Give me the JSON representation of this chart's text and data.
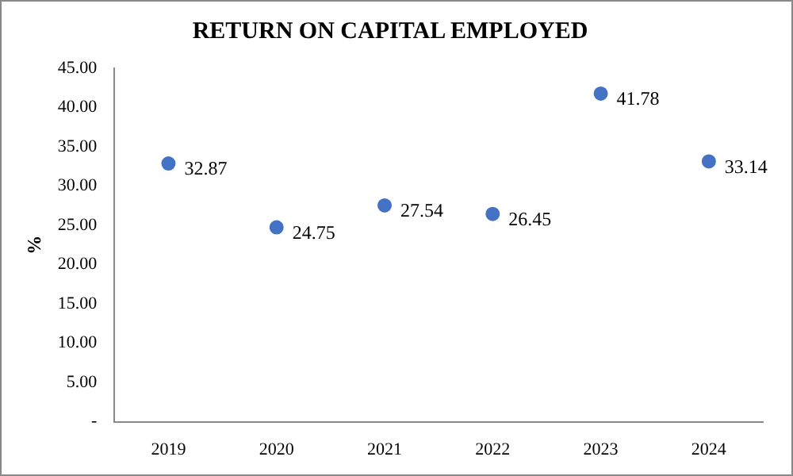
{
  "chart_data": {
    "type": "scatter",
    "title": "RETURN ON CAPITAL EMPLOYED",
    "ylabel": "%",
    "categories": [
      "2019",
      "2020",
      "2021",
      "2022",
      "2023",
      "2024"
    ],
    "values": [
      32.87,
      24.75,
      27.54,
      26.45,
      41.78,
      33.14
    ],
    "color": "#4472c4",
    "ylim": [
      0,
      45
    ],
    "yticks": [
      {
        "value": 0,
        "label": "-"
      },
      {
        "value": 5,
        "label": "5.00"
      },
      {
        "value": 10,
        "label": "10.00"
      },
      {
        "value": 15,
        "label": "15.00"
      },
      {
        "value": 20,
        "label": "20.00"
      },
      {
        "value": 25,
        "label": "25.00"
      },
      {
        "value": 30,
        "label": "30.00"
      },
      {
        "value": 35,
        "label": "35.00"
      },
      {
        "value": 40,
        "label": "40.00"
      },
      {
        "value": 45,
        "label": "45.00"
      }
    ],
    "data_labels": true,
    "marker": "circle",
    "grid": false,
    "legend": false
  }
}
